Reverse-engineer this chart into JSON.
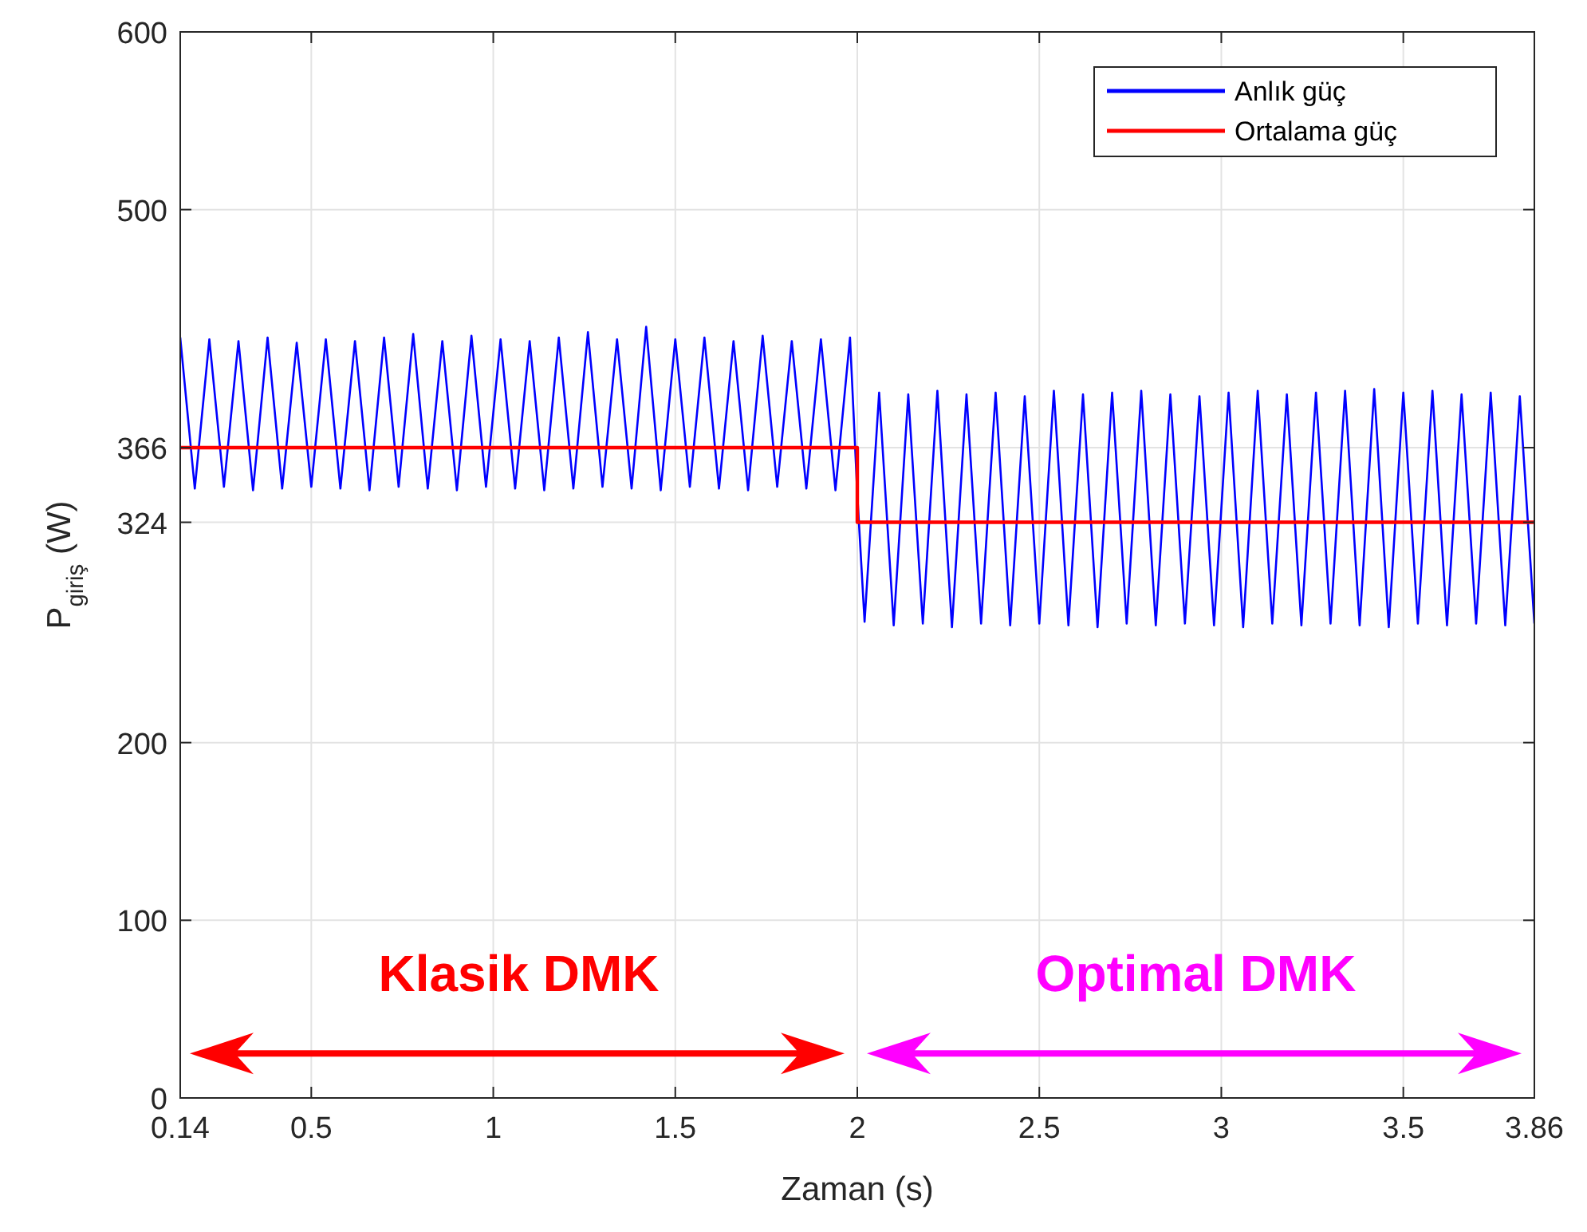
{
  "chart_data": {
    "type": "line",
    "xlabel": "Zaman (s)",
    "ylabel": "P$_{giriş}$ (W)",
    "xlim": [
      0.14,
      3.86
    ],
    "ylim": [
      0,
      600
    ],
    "xticks": [
      0.14,
      0.5,
      1,
      1.5,
      2,
      2.5,
      3,
      3.5,
      3.86
    ],
    "yticks": [
      0,
      100,
      200,
      324,
      366,
      500,
      600
    ],
    "grid": true,
    "legend": "top right",
    "line_style": "solid",
    "marker": "none",
    "series": [
      {
        "name": "Anlık güç",
        "color": "#0000ff",
        "x": [
          0.14,
          0.18,
          0.22,
          0.26,
          0.3,
          0.34,
          0.38,
          0.42,
          0.46,
          0.5,
          0.54,
          0.58,
          0.62,
          0.66,
          0.7,
          0.74,
          0.78,
          0.82,
          0.86,
          0.9,
          0.94,
          0.98,
          1.02,
          1.06,
          1.1,
          1.14,
          1.18,
          1.22,
          1.26,
          1.3,
          1.34,
          1.38,
          1.42,
          1.46,
          1.5,
          1.54,
          1.58,
          1.62,
          1.66,
          1.7,
          1.74,
          1.78,
          1.82,
          1.86,
          1.9,
          1.94,
          1.98,
          2,
          2.02,
          2.06,
          2.1,
          2.14,
          2.18,
          2.22,
          2.26,
          2.3,
          2.34,
          2.38,
          2.42,
          2.46,
          2.5,
          2.54,
          2.58,
          2.62,
          2.66,
          2.7,
          2.74,
          2.78,
          2.82,
          2.86,
          2.9,
          2.94,
          2.98,
          3.02,
          3.06,
          3.1,
          3.14,
          3.18,
          3.22,
          3.26,
          3.3,
          3.34,
          3.38,
          3.42,
          3.46,
          3.5,
          3.54,
          3.58,
          3.62,
          3.66,
          3.7,
          3.74,
          3.78,
          3.82,
          3.86
        ],
        "values": [
          428,
          343,
          427,
          344,
          426,
          342,
          428,
          343,
          425,
          344,
          427,
          343,
          426,
          342,
          428,
          344,
          430,
          343,
          426,
          342,
          429,
          344,
          427,
          343,
          426,
          342,
          428,
          343,
          431,
          344,
          427,
          343,
          434,
          342,
          427,
          344,
          428,
          343,
          426,
          342,
          429,
          344,
          426,
          343,
          427,
          342,
          428,
          340,
          268,
          397,
          266,
          396,
          267,
          398,
          265,
          396,
          267,
          397,
          266,
          395,
          267,
          398,
          266,
          396,
          265,
          397,
          267,
          398,
          266,
          396,
          267,
          395,
          266,
          397,
          265,
          398,
          267,
          396,
          266,
          397,
          267,
          398,
          266,
          399,
          265,
          397,
          267,
          398,
          266,
          396,
          267,
          397,
          266,
          395,
          267
        ]
      },
      {
        "name": "Ortalama güç",
        "color": "#ff0000",
        "x": [
          0.14,
          2,
          2,
          3.86
        ],
        "values": [
          366,
          366,
          324,
          324
        ]
      }
    ],
    "annotations": [
      "Klasik DMK",
      "Optimal DMK"
    ]
  }
}
